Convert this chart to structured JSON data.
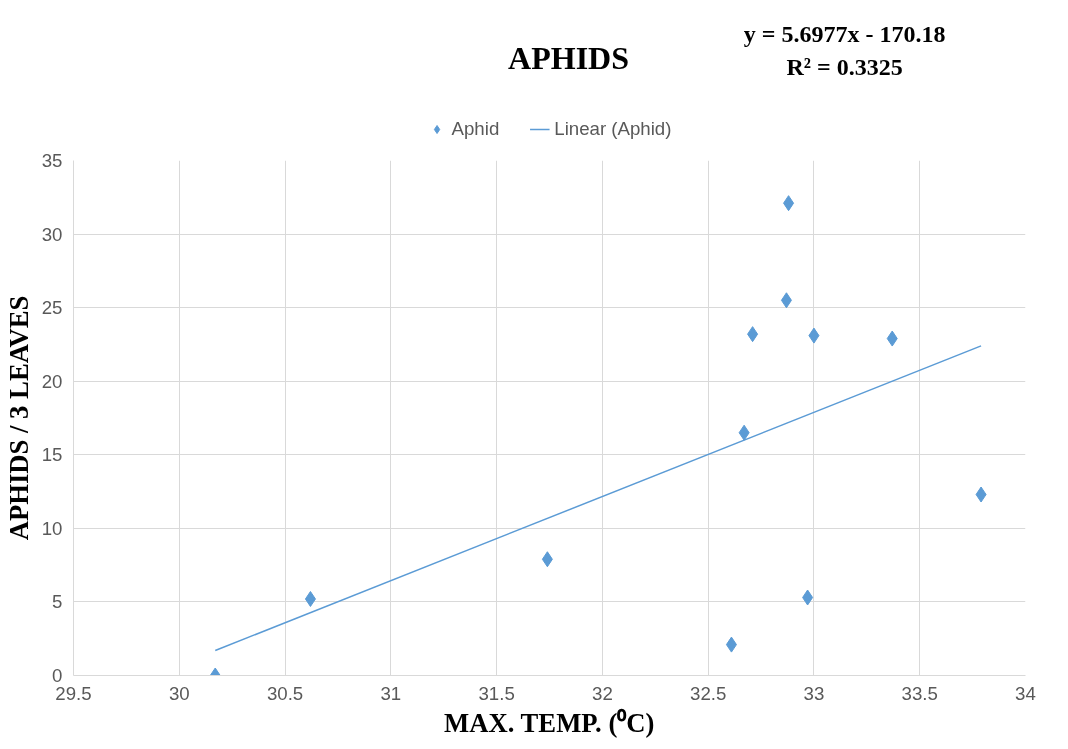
{
  "chart_data": {
    "type": "scatter",
    "title": "APHIDS",
    "xlabel": "MAX. TEMP. (⁰C)",
    "ylabel": "APHIDS / 3 LEAVES",
    "annotations": [
      "y = 5.6977x - 170.18",
      "R² = 0.3325"
    ],
    "x": [
      30.17,
      30.62,
      31.74,
      32.61,
      32.67,
      32.71,
      32.87,
      32.88,
      33.0,
      32.97,
      33.37,
      33.79
    ],
    "series": [
      {
        "name": "Aphid",
        "color": "#5b9bd5",
        "marker": "diamond",
        "values": [
          0,
          5.2,
          7.9,
          2.1,
          16.5,
          23.2,
          25.5,
          32.1,
          23.1,
          5.3,
          22.9,
          12.3
        ]
      },
      {
        "name": "Linear (Aphid)",
        "type": "line",
        "color": "#5b9bd5",
        "marker": "none",
        "x": [
          30.17,
          33.79
        ],
        "values": [
          1.7,
          22.4
        ]
      }
    ],
    "xlim": [
      29.5,
      34
    ],
    "ylim": [
      0,
      35
    ],
    "xticks": [
      29.5,
      30,
      30.5,
      31,
      31.5,
      32,
      32.5,
      33,
      33.5,
      34
    ],
    "yticks": [
      0,
      5,
      10,
      15,
      20,
      25,
      30,
      35
    ],
    "grid": true,
    "legend": "top"
  }
}
